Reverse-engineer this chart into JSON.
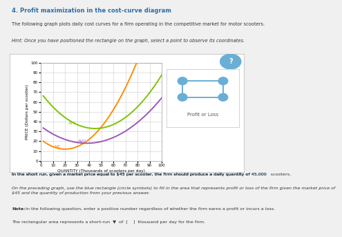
{
  "title": "4. Profit maximization in the cost-curve diagram",
  "subtitle": "The following graph plots daily cost curves for a firm operating in the competitive market for motor scooters.",
  "hint": "Hint: Once you have positioned the rectangle on the graph, select a point to observe its coordinates.",
  "xlabel": "QUANTITY (Thousands of scooters per day)",
  "ylabel": "PRICE (Dollars per scooter)",
  "xlim": [
    0,
    100
  ],
  "ylim": [
    0,
    100
  ],
  "xticks": [
    0,
    10,
    20,
    30,
    40,
    50,
    60,
    70,
    80,
    90,
    100
  ],
  "yticks": [
    0,
    10,
    20,
    30,
    40,
    50,
    60,
    70,
    80,
    90,
    100
  ],
  "mc_color": "#FF8C00",
  "atc_color": "#7DC400",
  "avc_color": "#9B59B6",
  "legend_label": "Profit or Loss",
  "legend_icon_color": "#6aaed6",
  "bg_color": "#f0f0f0",
  "plot_bg_color": "#ffffff",
  "grid_color": "#cccccc",
  "note_text1": "In the short run, given a market price equal to $45 per scooter, the firm should produce a daily quantity of  45,000   scooters.",
  "note2_line1": "On the preceding graph, use the blue rectangle (circle symbols) to fill in the area that represents profit or loss of the firm given the market price of",
  "note2_line2": "$45 and the quantity of production from your previous answer.",
  "note3_bold": "Note:",
  "note3_rest": " In the following question, enter a positive number regardless of whether the firm earns a profit or incurs a loss.",
  "note4": "The rectangular area represents a short-run",
  "bottom_text": "thousand per day for the firm."
}
